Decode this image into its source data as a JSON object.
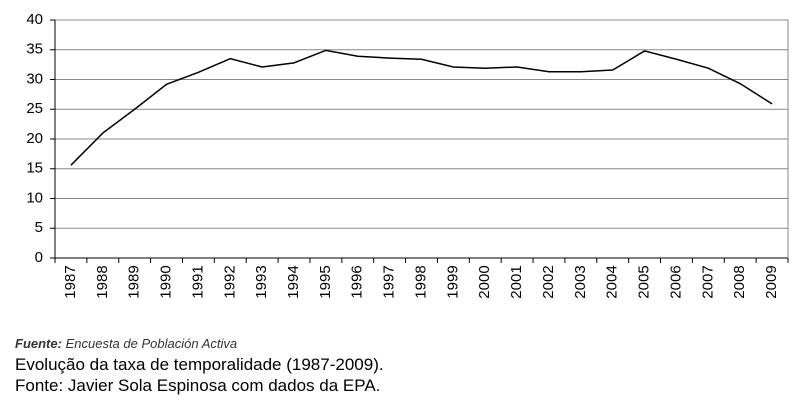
{
  "chart_data": {
    "type": "line",
    "categories": [
      "1987",
      "1988",
      "1989",
      "1990",
      "1991",
      "1992",
      "1993",
      "1994",
      "1995",
      "1996",
      "1997",
      "1998",
      "1999",
      "2000",
      "2001",
      "2002",
      "2003",
      "2004",
      "2005",
      "2006",
      "2007",
      "2008",
      "2009"
    ],
    "values": [
      15.6,
      21,
      25,
      29.2,
      31.2,
      33.5,
      32.1,
      32.8,
      34.9,
      33.9,
      33.6,
      33.4,
      32.1,
      31.9,
      32.1,
      31.3,
      31.3,
      31.6,
      34.8,
      33.4,
      31.9,
      29.3,
      25.9
    ],
    "color": "#000000",
    "ylim": [
      0,
      40
    ],
    "yticks": [
      0,
      5,
      10,
      15,
      20,
      25,
      30,
      35,
      40
    ],
    "grid": true
  },
  "source": {
    "label": "Fuente:",
    "text": "Encuesta de Población Activa"
  },
  "caption": [
    "Evolução da taxa de temporalidade (1987-2009).",
    "Fonte: Javier Sola Espinosa com dados da EPA."
  ]
}
